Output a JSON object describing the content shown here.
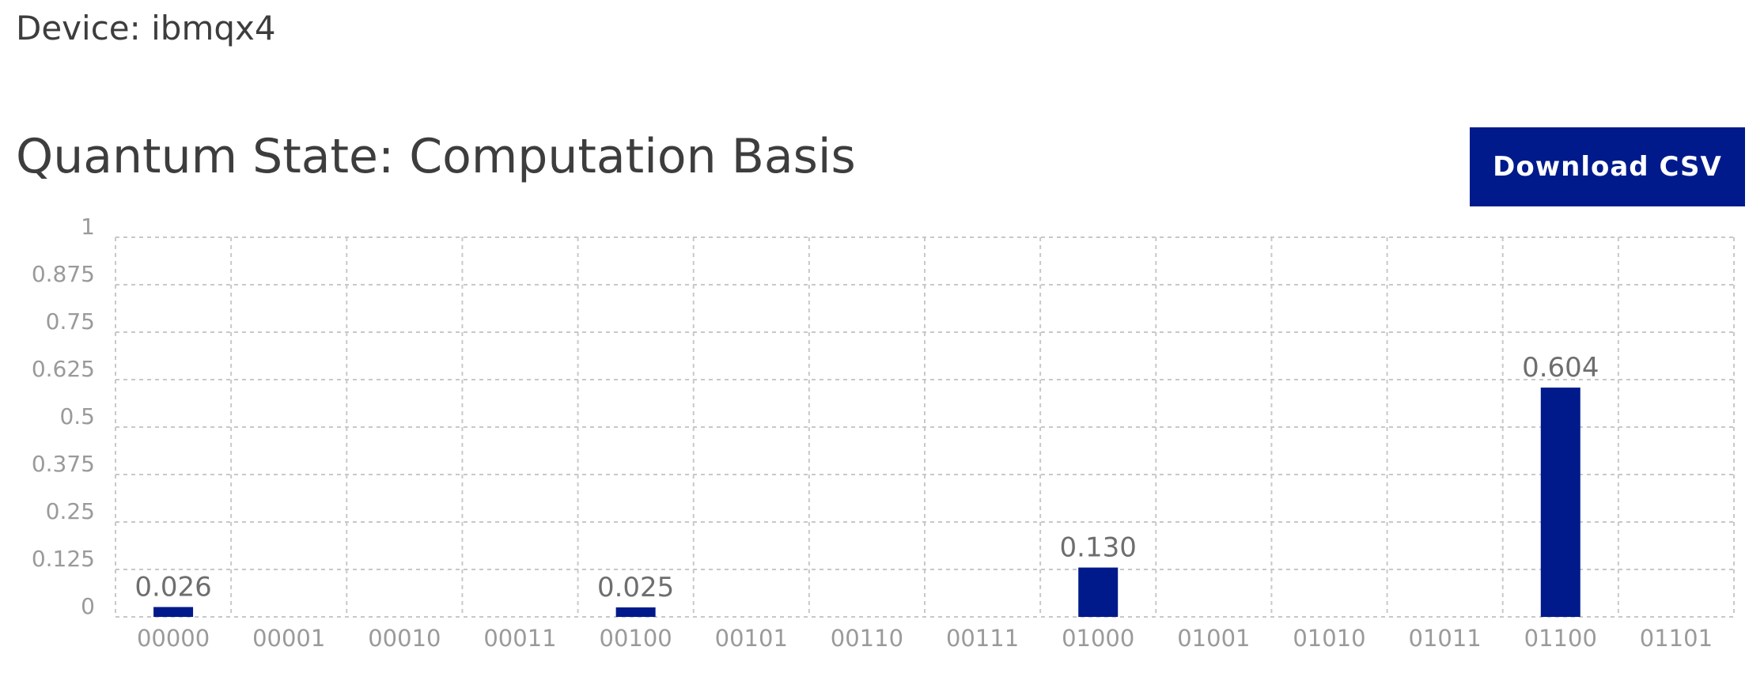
{
  "device": {
    "label": "Device: ibmqx4"
  },
  "download_button": {
    "label": "Download CSV"
  },
  "colors": {
    "bar": "#001a8c",
    "button": "#001a8c",
    "grid": "#c8c8c8"
  },
  "chart_data": {
    "type": "bar",
    "title": "Quantum State: Computation Basis",
    "xlabel": "",
    "ylabel": "",
    "ylim": [
      0,
      1
    ],
    "grid": true,
    "y_ticks": [
      {
        "value": 0,
        "label": "0"
      },
      {
        "value": 0.125,
        "label": "0.125"
      },
      {
        "value": 0.25,
        "label": "0.25"
      },
      {
        "value": 0.375,
        "label": "0.375"
      },
      {
        "value": 0.5,
        "label": "0.5"
      },
      {
        "value": 0.625,
        "label": "0.625"
      },
      {
        "value": 0.75,
        "label": "0.75"
      },
      {
        "value": 0.875,
        "label": "0.875"
      },
      {
        "value": 1,
        "label": "1"
      }
    ],
    "categories": [
      "00000",
      "00001",
      "00010",
      "00011",
      "00100",
      "00101",
      "00110",
      "00111",
      "01000",
      "01001",
      "01010",
      "01011",
      "01100",
      "01101"
    ],
    "values": [
      0.026,
      0,
      0,
      0,
      0.025,
      0,
      0,
      0,
      0.13,
      0,
      0,
      0,
      0.604,
      0
    ],
    "data_labels": [
      "0.026",
      "",
      "",
      "",
      "0.025",
      "",
      "",
      "",
      "0.130",
      "",
      "",
      "",
      "0.604",
      ""
    ]
  }
}
